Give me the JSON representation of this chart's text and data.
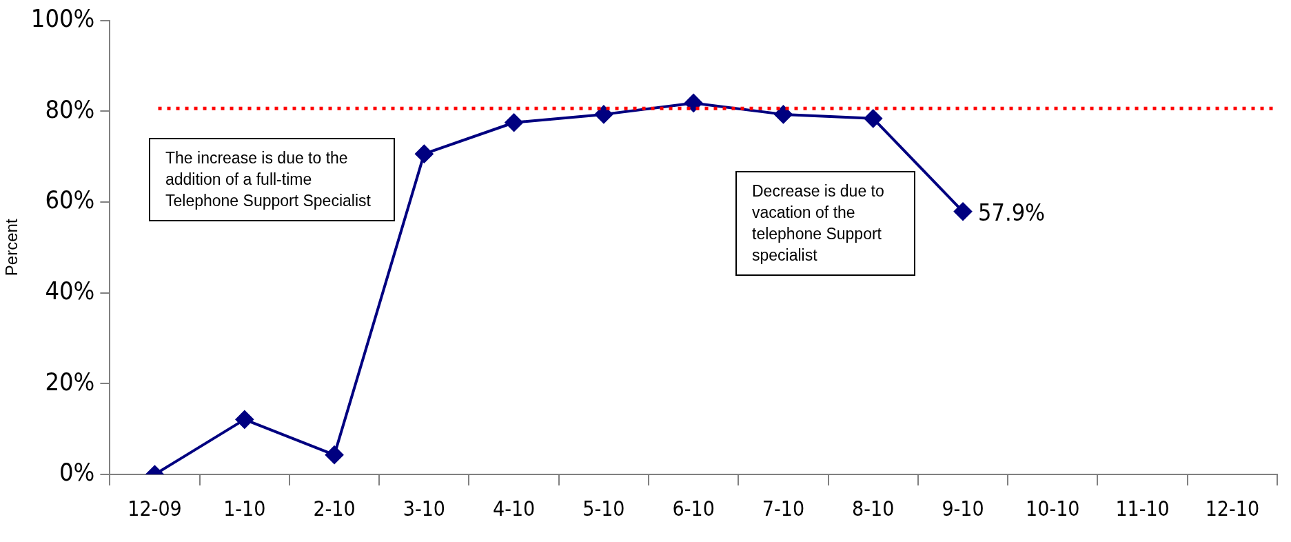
{
  "chart_data": {
    "type": "line",
    "ylabel": "Percent",
    "categories": [
      "12-09",
      "1-10",
      "2-10",
      "3-10",
      "4-10",
      "5-10",
      "6-10",
      "7-10",
      "8-10",
      "9-10",
      "10-10",
      "11-10",
      "12-10"
    ],
    "series": [
      {
        "color": "#000080",
        "values": [
          0,
          12.1,
          4.3,
          70.6,
          77.5,
          79.3,
          81.8,
          79.3,
          78.4,
          57.9,
          null,
          null,
          null
        ],
        "value_labels": [
          null,
          null,
          null,
          null,
          null,
          null,
          null,
          null,
          null,
          "57.9%",
          null,
          null,
          null
        ]
      }
    ],
    "ylim": [
      0,
      100
    ],
    "yticks": [
      {
        "value": 0,
        "label": "0%"
      },
      {
        "value": 20,
        "label": "20%"
      },
      {
        "value": 40,
        "label": "40%"
      },
      {
        "value": 60,
        "label": "60%"
      },
      {
        "value": 80,
        "label": "80%"
      },
      {
        "value": 100,
        "label": "100%"
      }
    ],
    "ref_lines": [
      {
        "axis": "y",
        "value": 80.6,
        "color": "#ff0000",
        "line_style": "dotted"
      }
    ],
    "annotations": [
      "The increase is due to the addition of a full-time Telephone Support Specialist",
      "Decrease is due to vacation of the telephone Support specialist"
    ],
    "marker": "diamond",
    "line_style": "solid",
    "legend": false,
    "grid": false
  }
}
